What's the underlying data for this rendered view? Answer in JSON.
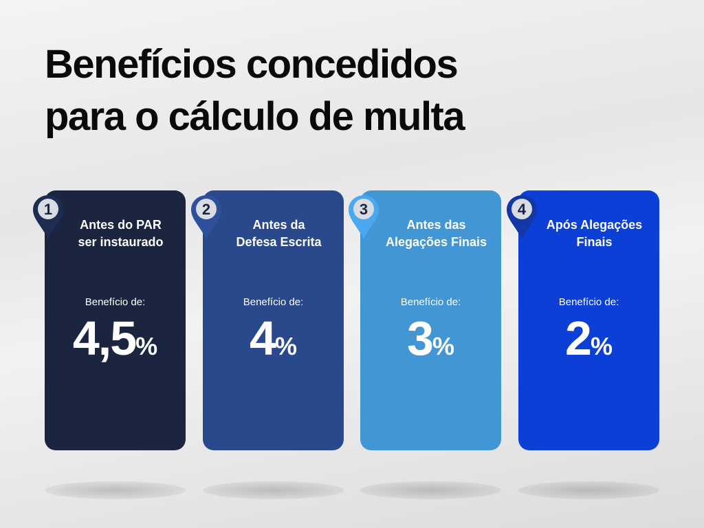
{
  "title_lines": [
    "Benefícios concedidos",
    "para o cálculo de multa"
  ],
  "cards": [
    {
      "number": "1",
      "heading_lines": [
        "Antes do PAR",
        "ser instaurado"
      ],
      "label": "Benefício de:",
      "value": "4,5",
      "unit": "%",
      "color": "#1b2540",
      "pin": "#1e2c52"
    },
    {
      "number": "2",
      "heading_lines": [
        "Antes da",
        "Defesa Escrita"
      ],
      "label": "Benefício de:",
      "value": "4",
      "unit": "%",
      "color": "#29498c",
      "pin": "#2c5099"
    },
    {
      "number": "3",
      "heading_lines": [
        "Antes das",
        "Alegações Finais"
      ],
      "label": "Benefício de:",
      "value": "3",
      "unit": "%",
      "color": "#4296d3",
      "pin": "#4aa8ee"
    },
    {
      "number": "4",
      "heading_lines": [
        "Após Alegações",
        "Finais"
      ],
      "label": "Benefício de:",
      "value": "2",
      "unit": "%",
      "color": "#0c3fd5",
      "pin": "#1437a6"
    }
  ]
}
